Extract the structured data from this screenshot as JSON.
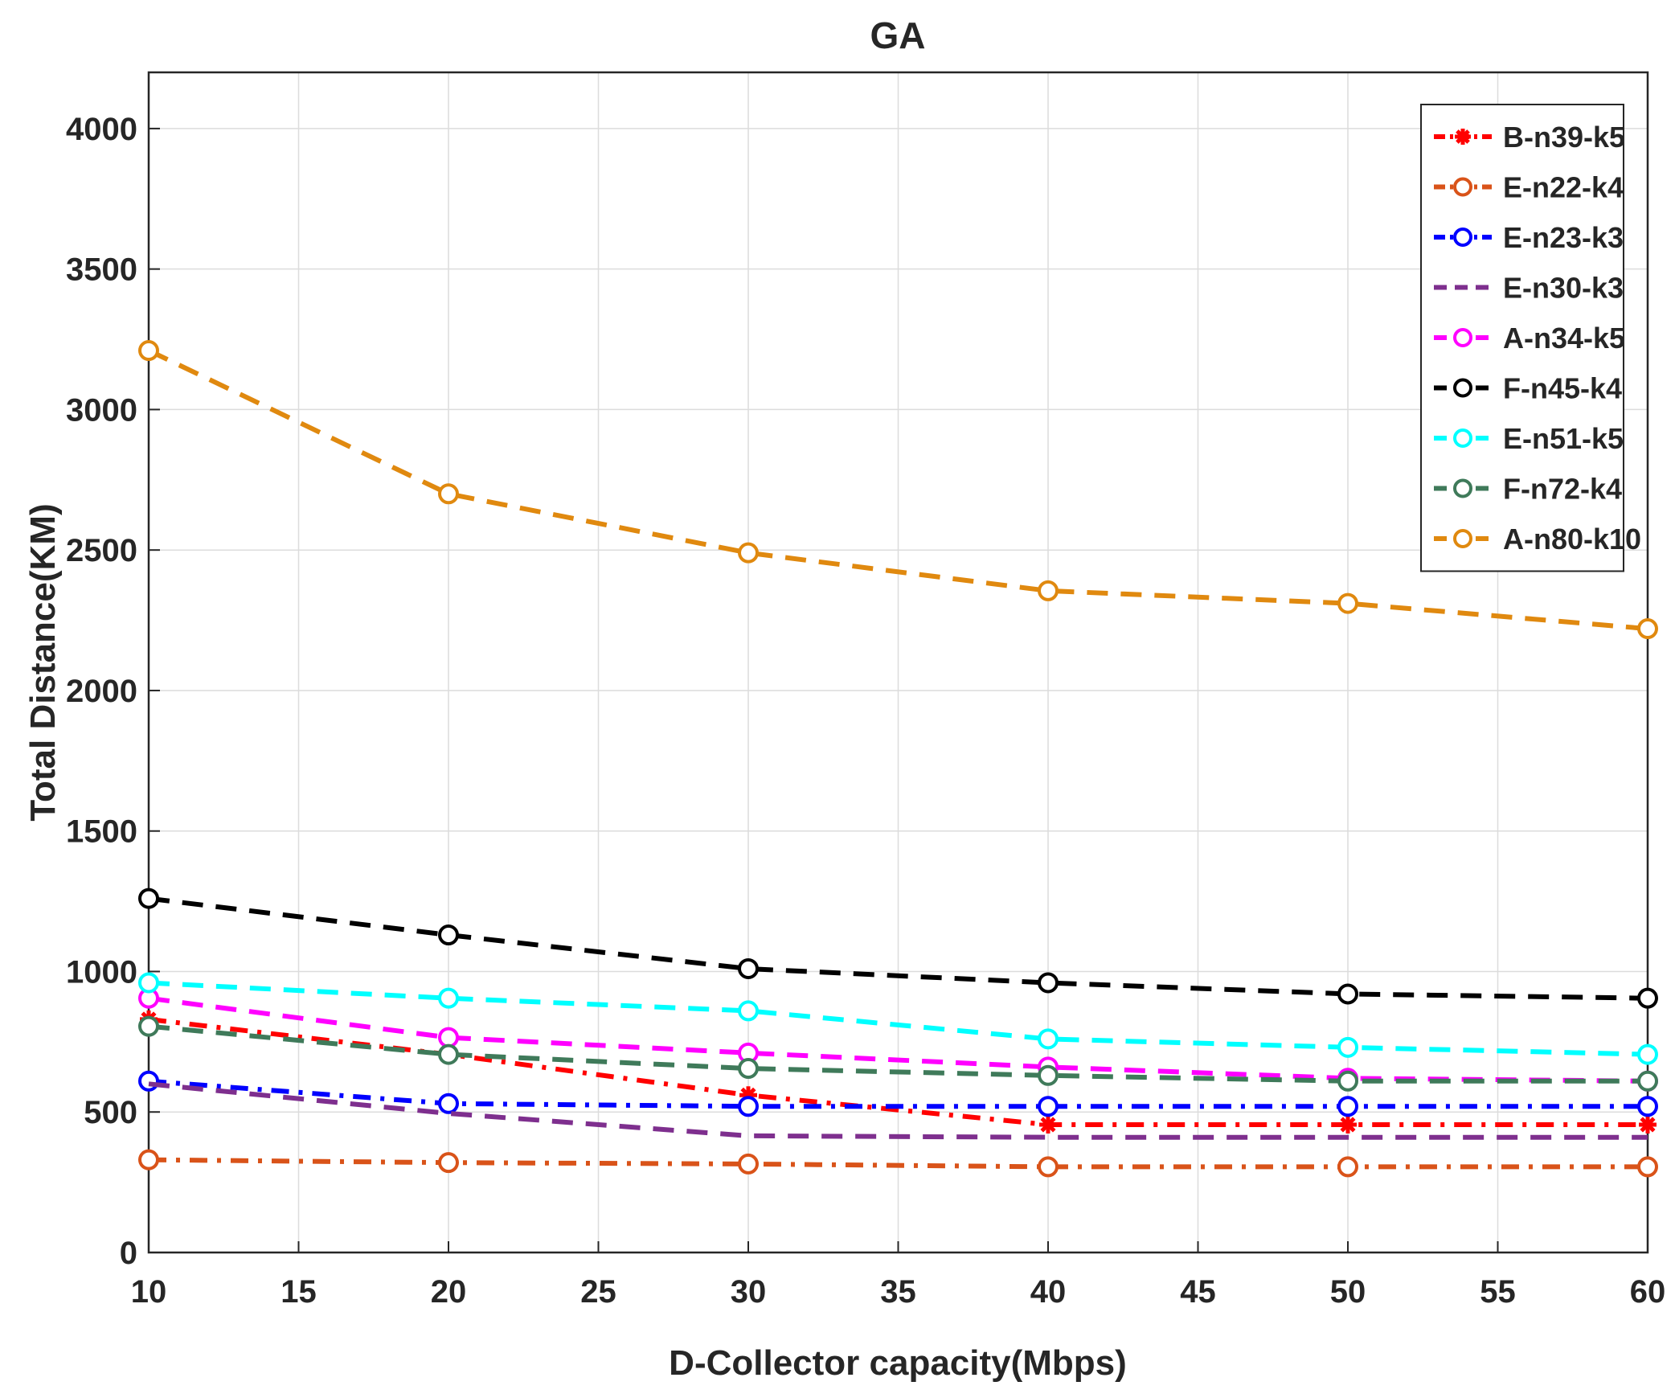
{
  "chart_data": {
    "type": "line",
    "title": "GA",
    "xlabel": "D-Collector capacity(Mbps)",
    "ylabel": "Total Distance(KM)",
    "xlim": [
      10,
      60
    ],
    "ylim": [
      0,
      4200
    ],
    "xticks": [
      10,
      15,
      20,
      25,
      30,
      35,
      40,
      45,
      50,
      55,
      60
    ],
    "yticks": [
      0,
      500,
      1000,
      1500,
      2000,
      2500,
      3000,
      3500,
      4000
    ],
    "grid": true,
    "legend_position": "top-right",
    "x": [
      10,
      20,
      30,
      40,
      50,
      60
    ],
    "series": [
      {
        "name": "B-n39-k5",
        "values": [
          830,
          705,
          560,
          455,
          455,
          455
        ],
        "color": "#ff0000",
        "dash": "dashdot",
        "marker": "star"
      },
      {
        "name": "E-n22-k4",
        "values": [
          330,
          320,
          315,
          305,
          305,
          305
        ],
        "color": "#d95319",
        "dash": "dashdot",
        "marker": "circle"
      },
      {
        "name": "E-n23-k3",
        "values": [
          610,
          530,
          520,
          520,
          520,
          520
        ],
        "color": "#0000ff",
        "dash": "dashdot",
        "marker": "circle"
      },
      {
        "name": "E-n30-k3",
        "values": [
          600,
          495,
          415,
          410,
          410,
          410
        ],
        "color": "#7e2f8e",
        "dash": "dashed",
        "marker": "none"
      },
      {
        "name": "A-n34-k5",
        "values": [
          905,
          765,
          710,
          660,
          620,
          610
        ],
        "color": "#ff00ff",
        "dash": "dashed",
        "marker": "circle"
      },
      {
        "name": "F-n45-k4",
        "values": [
          1260,
          1130,
          1010,
          960,
          920,
          905
        ],
        "color": "#000000",
        "dash": "dashed",
        "marker": "circle"
      },
      {
        "name": "E-n51-k5",
        "values": [
          960,
          905,
          860,
          760,
          730,
          705
        ],
        "color": "#00ffff",
        "dash": "dashed",
        "marker": "circle"
      },
      {
        "name": "F-n72-k4",
        "values": [
          805,
          705,
          655,
          630,
          610,
          610
        ],
        "color": "#3f7a5a",
        "dash": "dashed",
        "marker": "circle"
      },
      {
        "name": "A-n80-k10",
        "values": [
          3210,
          2700,
          2490,
          2355,
          2310,
          2220
        ],
        "color": "#e0890f",
        "dash": "dashed",
        "marker": "circle"
      }
    ]
  }
}
